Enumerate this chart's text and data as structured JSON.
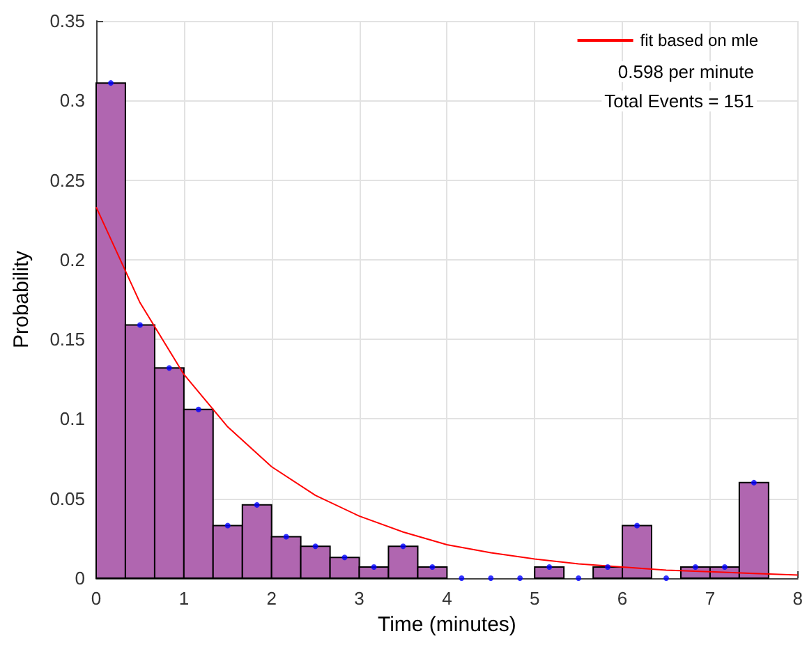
{
  "chart_data": {
    "type": "histogram",
    "xlabel": "Time (minutes)",
    "ylabel": "Probability",
    "series": [
      {
        "color": "#b066b0",
        "bins": [
          0,
          0.333,
          0.667,
          1,
          1.333,
          1.667,
          2,
          2.333,
          2.667,
          3,
          3.333,
          3.667,
          4,
          4.333,
          4.667,
          5,
          5.333,
          5.667,
          6,
          6.333,
          6.667,
          7,
          7.333,
          7.667
        ],
        "values": [
          0.311,
          0.159,
          0.132,
          0.106,
          0.033,
          0.046,
          0.026,
          0.02,
          0.013,
          0.007,
          0.02,
          0.007,
          0,
          0,
          0,
          0.007,
          0,
          0.007,
          0.033,
          0,
          0.007,
          0.007,
          0.06
        ]
      },
      {
        "type": "scatter",
        "color": "#0000ff",
        "marker": "circle",
        "x": [
          0.167,
          0.5,
          0.833,
          1.167,
          1.5,
          1.833,
          2.167,
          2.5,
          2.833,
          3.167,
          3.5,
          3.833,
          4.167,
          4.5,
          4.833,
          5.167,
          5.5,
          5.833,
          6.167,
          6.5,
          6.833,
          7.167,
          7.5
        ],
        "values": [
          0.311,
          0.159,
          0.132,
          0.106,
          0.033,
          0.046,
          0.026,
          0.02,
          0.013,
          0.007,
          0.02,
          0.007,
          0,
          0,
          0,
          0.007,
          0,
          0.007,
          0.033,
          0,
          0.007,
          0.007,
          0.06
        ]
      },
      {
        "type": "line",
        "name": "fit based on mle",
        "color": "#ff0000",
        "x": [
          0,
          0.5,
          1,
          1.5,
          2,
          2.5,
          3,
          3.5,
          4,
          4.5,
          5,
          5.5,
          6,
          6.5,
          7,
          7.5,
          8
        ],
        "values": [
          0.233,
          0.173,
          0.128,
          0.095,
          0.07,
          0.052,
          0.039,
          0.029,
          0.021,
          0.016,
          0.012,
          0.009,
          0.007,
          0.005,
          0.004,
          0.003,
          0.002
        ]
      }
    ],
    "annotations": [
      "0.598 per minute",
      "Total Events = 151"
    ],
    "xlim": [
      0,
      8
    ],
    "xticks": [
      0,
      1,
      2,
      3,
      4,
      5,
      6,
      7,
      8
    ],
    "ylim": [
      0,
      0.35
    ],
    "yticks": [
      0,
      0.05,
      0.1,
      0.15,
      0.2,
      0.25,
      0.3,
      0.35
    ],
    "grid": true,
    "legend": "top right"
  }
}
